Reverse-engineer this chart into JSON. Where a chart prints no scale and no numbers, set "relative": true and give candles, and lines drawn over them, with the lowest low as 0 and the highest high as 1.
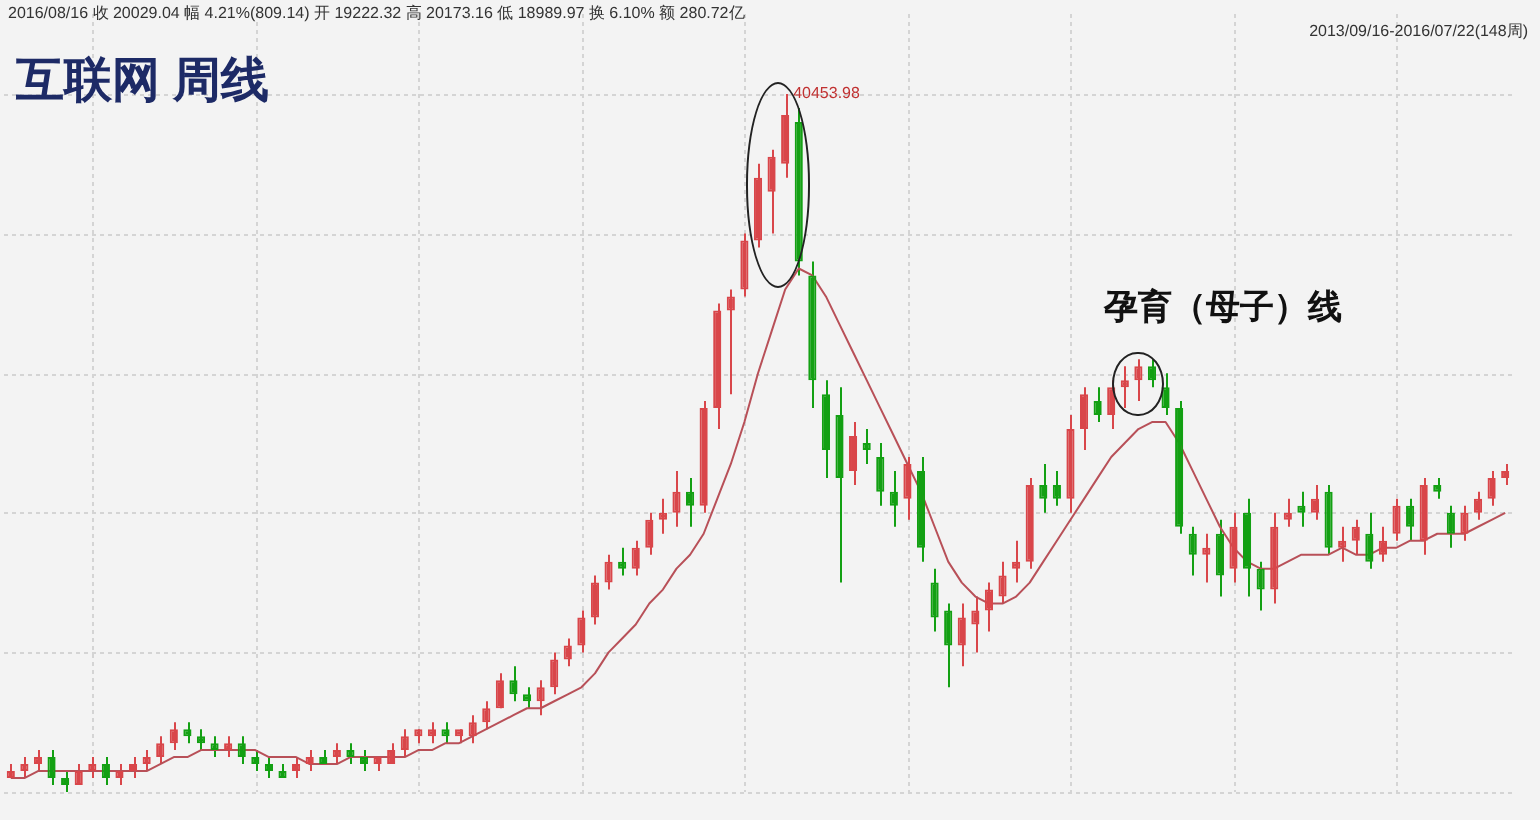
{
  "chart_data": {
    "type": "candlestick",
    "title": "互联网 周线",
    "relative": true,
    "grid": true,
    "categories": [
      null,
      null,
      null,
      null,
      null,
      null,
      null,
      null,
      null,
      null,
      null,
      null,
      null,
      null,
      null,
      null,
      null,
      null,
      null,
      null,
      null,
      null,
      null,
      null,
      null,
      null,
      null,
      null,
      null,
      null,
      null,
      null,
      null,
      null,
      null,
      null,
      null,
      null,
      null,
      null,
      null,
      null,
      null,
      null,
      null,
      null,
      null,
      null,
      null,
      null,
      null,
      null,
      null,
      null,
      null,
      null,
      null,
      null,
      null,
      null,
      null,
      null,
      null,
      null,
      null,
      null,
      null,
      null,
      null,
      null,
      null,
      null,
      null,
      null,
      null,
      null,
      null,
      null,
      null,
      null,
      null,
      null,
      null,
      null,
      null,
      null,
      null,
      null,
      null,
      null,
      null,
      null,
      null,
      null,
      null,
      null,
      null,
      null,
      null,
      null,
      null,
      null,
      null,
      null,
      null,
      null,
      null,
      null,
      null,
      null,
      null
    ],
    "annotations": [
      "2016/08/16 收 20029.04 幅 4.21%(809.14) 开 19222.32 高 20173.16 低 18989.97 换 6.10% 额 280.72亿",
      "2013/09/16-2016/07/22(148周)",
      "孕育（母子）线",
      "40453.98"
    ],
    "series": [
      {
        "ohlc": [
          [
            0.02,
            0.04,
            0.02,
            0.03
          ],
          [
            0.03,
            0.05,
            0.02,
            0.04
          ],
          [
            0.04,
            0.06,
            0.03,
            0.05
          ],
          [
            0.05,
            0.06,
            0.01,
            0.02
          ],
          [
            0.02,
            0.03,
            0.0,
            0.01
          ],
          [
            0.01,
            0.04,
            0.01,
            0.03
          ],
          [
            0.03,
            0.05,
            0.02,
            0.04
          ],
          [
            0.04,
            0.05,
            0.01,
            0.02
          ],
          [
            0.02,
            0.04,
            0.01,
            0.03
          ],
          [
            0.03,
            0.05,
            0.02,
            0.04
          ],
          [
            0.04,
            0.06,
            0.03,
            0.05
          ],
          [
            0.05,
            0.08,
            0.04,
            0.07
          ],
          [
            0.07,
            0.1,
            0.06,
            0.09
          ],
          [
            0.09,
            0.1,
            0.07,
            0.08
          ],
          [
            0.08,
            0.09,
            0.06,
            0.07
          ],
          [
            0.07,
            0.08,
            0.05,
            0.06
          ],
          [
            0.06,
            0.08,
            0.05,
            0.07
          ],
          [
            0.07,
            0.08,
            0.04,
            0.05
          ],
          [
            0.05,
            0.06,
            0.03,
            0.04
          ],
          [
            0.04,
            0.05,
            0.02,
            0.03
          ],
          [
            0.03,
            0.04,
            0.02,
            0.02
          ],
          [
            0.03,
            0.05,
            0.02,
            0.04
          ],
          [
            0.04,
            0.06,
            0.03,
            0.05
          ],
          [
            0.05,
            0.06,
            0.04,
            0.04
          ],
          [
            0.05,
            0.07,
            0.04,
            0.06
          ],
          [
            0.06,
            0.07,
            0.04,
            0.05
          ],
          [
            0.05,
            0.06,
            0.03,
            0.04
          ],
          [
            0.04,
            0.05,
            0.03,
            0.05
          ],
          [
            0.04,
            0.07,
            0.04,
            0.06
          ],
          [
            0.06,
            0.09,
            0.05,
            0.08
          ],
          [
            0.08,
            0.09,
            0.07,
            0.09
          ],
          [
            0.08,
            0.1,
            0.07,
            0.09
          ],
          [
            0.09,
            0.1,
            0.07,
            0.08
          ],
          [
            0.08,
            0.09,
            0.07,
            0.09
          ],
          [
            0.08,
            0.11,
            0.07,
            0.1
          ],
          [
            0.1,
            0.13,
            0.09,
            0.12
          ],
          [
            0.12,
            0.17,
            0.12,
            0.16
          ],
          [
            0.16,
            0.18,
            0.13,
            0.14
          ],
          [
            0.14,
            0.15,
            0.12,
            0.13
          ],
          [
            0.13,
            0.16,
            0.11,
            0.15
          ],
          [
            0.15,
            0.2,
            0.14,
            0.19
          ],
          [
            0.19,
            0.22,
            0.18,
            0.21
          ],
          [
            0.21,
            0.26,
            0.2,
            0.25
          ],
          [
            0.25,
            0.31,
            0.24,
            0.3
          ],
          [
            0.3,
            0.34,
            0.29,
            0.33
          ],
          [
            0.33,
            0.35,
            0.31,
            0.32
          ],
          [
            0.32,
            0.36,
            0.31,
            0.35
          ],
          [
            0.35,
            0.4,
            0.34,
            0.39
          ],
          [
            0.39,
            0.42,
            0.37,
            0.4
          ],
          [
            0.4,
            0.46,
            0.38,
            0.43
          ],
          [
            0.43,
            0.45,
            0.38,
            0.41
          ],
          [
            0.41,
            0.56,
            0.4,
            0.55
          ],
          [
            0.55,
            0.7,
            0.52,
            0.69
          ],
          [
            0.69,
            0.72,
            0.57,
            0.71
          ],
          [
            0.72,
            0.8,
            0.71,
            0.79
          ],
          [
            0.79,
            0.9,
            0.78,
            0.88
          ],
          [
            0.86,
            0.92,
            0.8,
            0.91
          ],
          [
            0.9,
            1.0,
            0.88,
            0.97
          ],
          [
            0.96,
            0.98,
            0.74,
            0.76
          ],
          [
            0.74,
            0.76,
            0.55,
            0.59
          ],
          [
            0.57,
            0.59,
            0.45,
            0.49
          ],
          [
            0.54,
            0.58,
            0.3,
            0.45
          ],
          [
            0.46,
            0.53,
            0.44,
            0.51
          ],
          [
            0.5,
            0.52,
            0.47,
            0.49
          ],
          [
            0.48,
            0.5,
            0.41,
            0.43
          ],
          [
            0.43,
            0.46,
            0.38,
            0.41
          ],
          [
            0.42,
            0.48,
            0.39,
            0.47
          ],
          [
            0.46,
            0.48,
            0.33,
            0.35
          ],
          [
            0.3,
            0.32,
            0.23,
            0.25
          ],
          [
            0.26,
            0.27,
            0.15,
            0.21
          ],
          [
            0.21,
            0.27,
            0.18,
            0.25
          ],
          [
            0.24,
            0.28,
            0.2,
            0.26
          ],
          [
            0.26,
            0.3,
            0.23,
            0.29
          ],
          [
            0.28,
            0.33,
            0.27,
            0.31
          ],
          [
            0.32,
            0.36,
            0.3,
            0.33
          ],
          [
            0.33,
            0.45,
            0.32,
            0.44
          ],
          [
            0.44,
            0.47,
            0.4,
            0.42
          ],
          [
            0.44,
            0.46,
            0.41,
            0.42
          ],
          [
            0.42,
            0.54,
            0.4,
            0.52
          ],
          [
            0.52,
            0.58,
            0.49,
            0.57
          ],
          [
            0.56,
            0.58,
            0.53,
            0.54
          ],
          [
            0.54,
            0.59,
            0.52,
            0.58
          ],
          [
            0.58,
            0.61,
            0.55,
            0.59
          ],
          [
            0.59,
            0.62,
            0.56,
            0.61
          ],
          [
            0.61,
            0.62,
            0.58,
            0.59
          ],
          [
            0.58,
            0.6,
            0.54,
            0.55
          ],
          [
            0.55,
            0.56,
            0.37,
            0.38
          ],
          [
            0.37,
            0.38,
            0.31,
            0.34
          ],
          [
            0.34,
            0.37,
            0.3,
            0.35
          ],
          [
            0.37,
            0.39,
            0.28,
            0.31
          ],
          [
            0.32,
            0.4,
            0.3,
            0.38
          ],
          [
            0.4,
            0.42,
            0.28,
            0.32
          ],
          [
            0.32,
            0.33,
            0.26,
            0.29
          ],
          [
            0.29,
            0.4,
            0.27,
            0.38
          ],
          [
            0.39,
            0.42,
            0.38,
            0.4
          ],
          [
            0.41,
            0.43,
            0.38,
            0.4
          ],
          [
            0.4,
            0.44,
            0.39,
            0.42
          ],
          [
            0.43,
            0.44,
            0.34,
            0.35
          ],
          [
            0.35,
            0.38,
            0.33,
            0.36
          ],
          [
            0.36,
            0.39,
            0.34,
            0.38
          ],
          [
            0.37,
            0.4,
            0.32,
            0.33
          ],
          [
            0.34,
            0.38,
            0.33,
            0.36
          ],
          [
            0.37,
            0.42,
            0.36,
            0.41
          ],
          [
            0.41,
            0.42,
            0.36,
            0.38
          ],
          [
            0.36,
            0.45,
            0.34,
            0.44
          ],
          [
            0.44,
            0.45,
            0.42,
            0.43
          ],
          [
            0.4,
            0.41,
            0.35,
            0.37
          ],
          [
            0.37,
            0.41,
            0.36,
            0.4
          ],
          [
            0.4,
            0.43,
            0.39,
            0.42
          ],
          [
            0.42,
            0.46,
            0.41,
            0.45
          ],
          [
            0.45,
            0.47,
            0.44,
            0.46
          ]
        ]
      },
      {
        "type": "line",
        "color": "#b85058",
        "values": [
          0.02,
          0.02,
          0.03,
          0.03,
          0.03,
          0.03,
          0.03,
          0.03,
          0.03,
          0.03,
          0.03,
          0.04,
          0.05,
          0.05,
          0.06,
          0.06,
          0.06,
          0.06,
          0.06,
          0.05,
          0.05,
          0.05,
          0.04,
          0.04,
          0.04,
          0.05,
          0.05,
          0.05,
          0.05,
          0.05,
          0.06,
          0.06,
          0.07,
          0.07,
          0.08,
          0.09,
          0.1,
          0.11,
          0.12,
          0.12,
          0.13,
          0.14,
          0.15,
          0.17,
          0.2,
          0.22,
          0.24,
          0.27,
          0.29,
          0.32,
          0.34,
          0.37,
          0.42,
          0.47,
          0.53,
          0.6,
          0.66,
          0.72,
          0.75,
          0.74,
          0.71,
          0.67,
          0.63,
          0.59,
          0.55,
          0.51,
          0.47,
          0.43,
          0.38,
          0.33,
          0.3,
          0.28,
          0.27,
          0.27,
          0.28,
          0.3,
          0.33,
          0.36,
          0.39,
          0.42,
          0.45,
          0.48,
          0.5,
          0.52,
          0.53,
          0.53,
          0.5,
          0.46,
          0.42,
          0.38,
          0.35,
          0.33,
          0.32,
          0.32,
          0.33,
          0.34,
          0.34,
          0.34,
          0.35,
          0.34,
          0.34,
          0.35,
          0.35,
          0.36,
          0.36,
          0.37,
          0.37,
          0.37,
          0.38,
          0.39,
          0.4
        ]
      }
    ]
  }
}
